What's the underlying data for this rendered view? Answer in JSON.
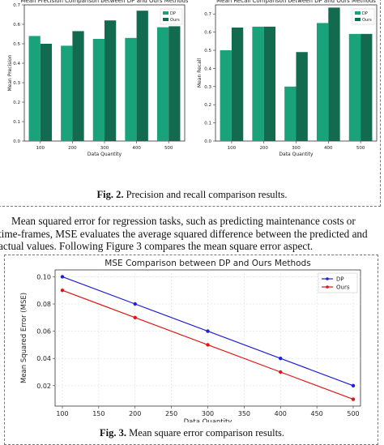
{
  "fig2": {
    "caption_label": "Fig. 2.",
    "caption_text": " Precision and recall comparison results."
  },
  "paragraph": {
    "line1": "Mean squared error for regression tasks, such as predicting maintenance costs or",
    "line2": "time-frames, MSE evaluates the average squared difference between the predicted and",
    "line3": "actual values. Following Figure 3 compares the mean square error aspect."
  },
  "fig3": {
    "caption_label": "Fig. 3.",
    "caption_text": " Mean square error comparison results."
  },
  "colors": {
    "dp_bar": "#1aa37a",
    "ours_bar": "#126b4e",
    "dp_line": "#1f1fd6",
    "ours_line": "#e01515"
  },
  "chart_data": [
    {
      "type": "bar",
      "title": "Mean Precision Comparison between DP and Ours Methods",
      "xlabel": "Data Quantity",
      "ylabel": "Mean Precision",
      "categories": [
        "100",
        "200",
        "300",
        "400",
        "500"
      ],
      "ylim": [
        0,
        0.7
      ],
      "yticks": [
        "0.0",
        "0.1",
        "0.2",
        "0.3",
        "0.4",
        "0.5",
        "0.6",
        "0.7"
      ],
      "legend_position": "top-right",
      "series": [
        {
          "name": "DP",
          "values": [
            0.54,
            0.49,
            0.525,
            0.53,
            0.585
          ]
        },
        {
          "name": "Ours",
          "values": [
            0.5,
            0.565,
            0.62,
            0.67,
            0.59
          ]
        }
      ]
    },
    {
      "type": "bar",
      "title": "Mean Recall Comparison between DP and Ours Methods",
      "xlabel": "Data Quantity",
      "ylabel": "Mean Recall",
      "categories": [
        "100",
        "200",
        "300",
        "400",
        "500"
      ],
      "ylim": [
        0,
        0.75
      ],
      "yticks": [
        "0.0",
        "0.1",
        "0.2",
        "0.3",
        "0.4",
        "0.5",
        "0.6",
        "0.7"
      ],
      "legend_position": "top-right",
      "series": [
        {
          "name": "DP",
          "values": [
            0.5,
            0.63,
            0.3,
            0.65,
            0.59
          ]
        },
        {
          "name": "Ours",
          "values": [
            0.625,
            0.63,
            0.49,
            0.735,
            0.59
          ]
        }
      ]
    },
    {
      "type": "line",
      "title": "MSE Comparison between DP and Ours Methods",
      "xlabel": "Data Quantity",
      "ylabel": "Mean Squared Error (MSE)",
      "x": [
        100,
        200,
        300,
        400,
        500
      ],
      "xlim": [
        90,
        510
      ],
      "xticks": [
        "100",
        "150",
        "200",
        "250",
        "300",
        "350",
        "400",
        "450",
        "500"
      ],
      "ylim": [
        0.005,
        0.105
      ],
      "yticks": [
        "0.02",
        "0.04",
        "0.06",
        "0.08",
        "0.10"
      ],
      "grid": true,
      "legend_position": "top-right",
      "series": [
        {
          "name": "DP",
          "values": [
            0.1,
            0.08,
            0.06,
            0.04,
            0.02
          ]
        },
        {
          "name": "Ours",
          "values": [
            0.09,
            0.07,
            0.05,
            0.03,
            0.01
          ]
        }
      ]
    }
  ]
}
